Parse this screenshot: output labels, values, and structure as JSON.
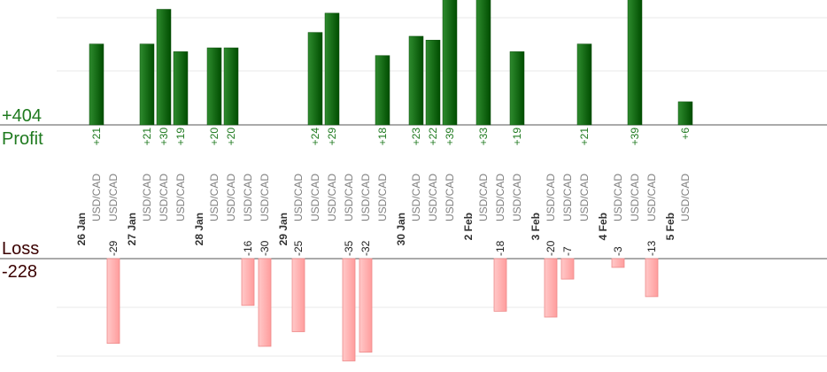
{
  "summary": {
    "profit_total": "+404",
    "profit_label": "Profit",
    "loss_label": "Loss",
    "loss_total": "-228",
    "profit_color": "#006400",
    "loss_color": "#ffaaaa",
    "profit_text_color": "#1f7a1f",
    "loss_text_color": "#3a0000"
  },
  "chart_data": {
    "type": "bar",
    "pair": "USD/CAD",
    "days": [
      "26 Jan",
      "27 Jan",
      "28 Jan",
      "29 Jan",
      "30 Jan",
      "2 Feb",
      "3 Feb",
      "4 Feb",
      "5 Feb"
    ],
    "trades": [
      {
        "day": "26 Jan",
        "pair": "USD/CAD",
        "value": 21
      },
      {
        "day": "26 Jan",
        "pair": "USD/CAD",
        "value": -29
      },
      {
        "day": "27 Jan",
        "pair": "USD/CAD",
        "value": 21
      },
      {
        "day": "27 Jan",
        "pair": "USD/CAD",
        "value": 30
      },
      {
        "day": "27 Jan",
        "pair": "USD/CAD",
        "value": 19
      },
      {
        "day": "28 Jan",
        "pair": "USD/CAD",
        "value": 20
      },
      {
        "day": "28 Jan",
        "pair": "USD/CAD",
        "value": 20
      },
      {
        "day": "28 Jan",
        "pair": "USD/CAD",
        "value": -16
      },
      {
        "day": "28 Jan",
        "pair": "USD/CAD",
        "value": -30
      },
      {
        "day": "29 Jan",
        "pair": "USD/CAD",
        "value": -25
      },
      {
        "day": "29 Jan",
        "pair": "USD/CAD",
        "value": 24
      },
      {
        "day": "29 Jan",
        "pair": "USD/CAD",
        "value": 29
      },
      {
        "day": "29 Jan",
        "pair": "USD/CAD",
        "value": -35
      },
      {
        "day": "29 Jan",
        "pair": "USD/CAD",
        "value": -32
      },
      {
        "day": "29 Jan",
        "pair": "USD/CAD",
        "value": 18
      },
      {
        "day": "30 Jan",
        "pair": "USD/CAD",
        "value": 23
      },
      {
        "day": "30 Jan",
        "pair": "USD/CAD",
        "value": 22
      },
      {
        "day": "30 Jan",
        "pair": "USD/CAD",
        "value": 39
      },
      {
        "day": "2 Feb",
        "pair": "USD/CAD",
        "value": 33
      },
      {
        "day": "2 Feb",
        "pair": "USD/CAD",
        "value": -18
      },
      {
        "day": "2 Feb",
        "pair": "USD/CAD",
        "value": 19
      },
      {
        "day": "3 Feb",
        "pair": "USD/CAD",
        "value": -20
      },
      {
        "day": "3 Feb",
        "pair": "USD/CAD",
        "value": -7
      },
      {
        "day": "3 Feb",
        "pair": "USD/CAD",
        "value": 21
      },
      {
        "day": "4 Feb",
        "pair": "USD/CAD",
        "value": -3
      },
      {
        "day": "4 Feb",
        "pair": "USD/CAD",
        "value": 39
      },
      {
        "day": "4 Feb",
        "pair": "USD/CAD",
        "value": -13
      },
      {
        "day": "5 Feb",
        "pair": "USD/CAD",
        "value": 6
      }
    ],
    "grid": true
  }
}
